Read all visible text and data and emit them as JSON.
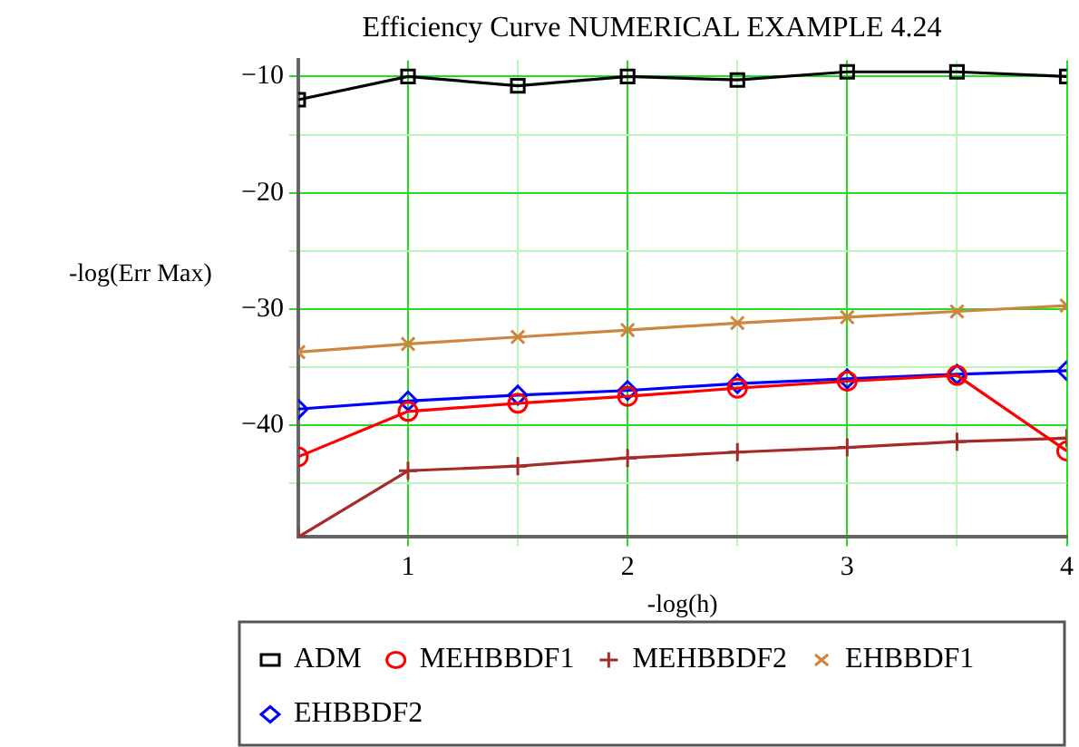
{
  "chart_data": {
    "type": "line",
    "title": "Efficiency Curve NUMERICAL EXAMPLE 4.24",
    "xlabel": "-log(h)",
    "ylabel": "-log(Err Max)",
    "x": [
      0.5,
      1,
      1.5,
      2,
      2.5,
      3,
      3.5,
      4
    ],
    "series": [
      {
        "name": "ADM",
        "color": "#000000",
        "marker": "square",
        "values": [
          -12.0,
          -10.0,
          -10.8,
          -10.0,
          -10.3,
          -9.6,
          -9.6,
          -10.0
        ]
      },
      {
        "name": "MEHBBDF1",
        "color": "#ff0000",
        "marker": "circle",
        "values": [
          -42.7,
          -38.8,
          -38.1,
          -37.5,
          -36.8,
          -36.2,
          -35.7,
          -42.2
        ]
      },
      {
        "name": "MEHBBDF2",
        "color": "#a52a2a",
        "marker": "cross",
        "values": [
          -49.6,
          -43.9,
          -43.5,
          -42.8,
          -42.3,
          -41.9,
          -41.4,
          -41.1
        ]
      },
      {
        "name": "EHBBDF1",
        "color": "#cd853f",
        "marker": "x",
        "values": [
          -33.7,
          -33.0,
          -32.4,
          -31.8,
          -31.2,
          -30.7,
          -30.2,
          -29.7
        ]
      },
      {
        "name": "EHBBDF2",
        "color": "#0000ff",
        "marker": "diamond",
        "values": [
          -38.6,
          -37.9,
          -37.4,
          -37.0,
          -36.4,
          -36.0,
          -35.6,
          -35.3
        ]
      }
    ],
    "xlim": [
      0.5,
      4
    ],
    "xticks": [
      1,
      {
        "value": 1.5,
        "label": null
      },
      2,
      {
        "value": 2.5,
        "label": null
      },
      3,
      {
        "value": 3.5,
        "label": null
      },
      4
    ],
    "ylim": [
      -49.6,
      -8.6
    ],
    "yticks": [
      {
        "value": -45,
        "label": null
      },
      -40,
      {
        "value": -35,
        "label": null
      },
      -30,
      {
        "value": -25,
        "label": null
      },
      -20,
      {
        "value": -15,
        "label": null
      },
      -10
    ],
    "grid": true,
    "legend": "bottom",
    "line_style": "solid"
  }
}
